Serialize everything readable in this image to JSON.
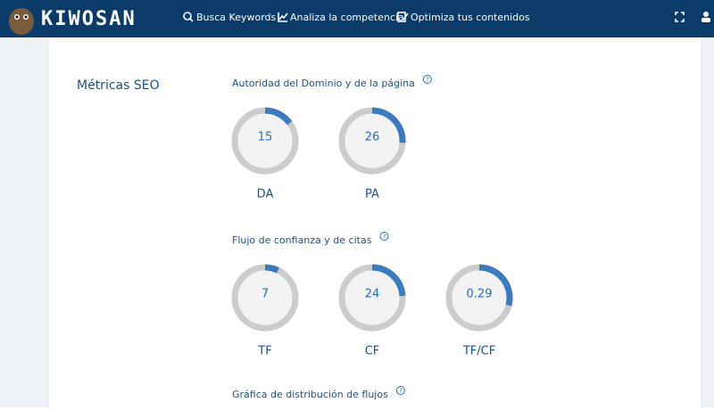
{
  "header": {
    "logo": "KIWOSAN",
    "nav": [
      "Busca Keywords",
      "Analiza la competencia",
      "Optimiza tus contenidos"
    ]
  },
  "section": {
    "title": "Métricas SEO",
    "groups": [
      {
        "title": "Autoridad del Dominio y de la página",
        "help": "?",
        "gauges": [
          {
            "label": "DA",
            "value": 15,
            "range": [
              0,
              100
            ]
          },
          {
            "label": "PA",
            "value": 26,
            "range": [
              0,
              100
            ]
          }
        ]
      },
      {
        "title": "Flujo de confianza y de citas",
        "help": "?",
        "gauges": [
          {
            "label": "TF",
            "value": 7,
            "range": [
              0,
              100
            ]
          },
          {
            "label": "CF",
            "value": 24,
            "range": [
              0,
              100
            ]
          },
          {
            "label": "TF/CF",
            "value": 0.29,
            "range": [
              0,
              1
            ]
          }
        ]
      },
      {
        "title": "Gráfica de distribución de flujos",
        "help": "?"
      }
    ]
  }
}
